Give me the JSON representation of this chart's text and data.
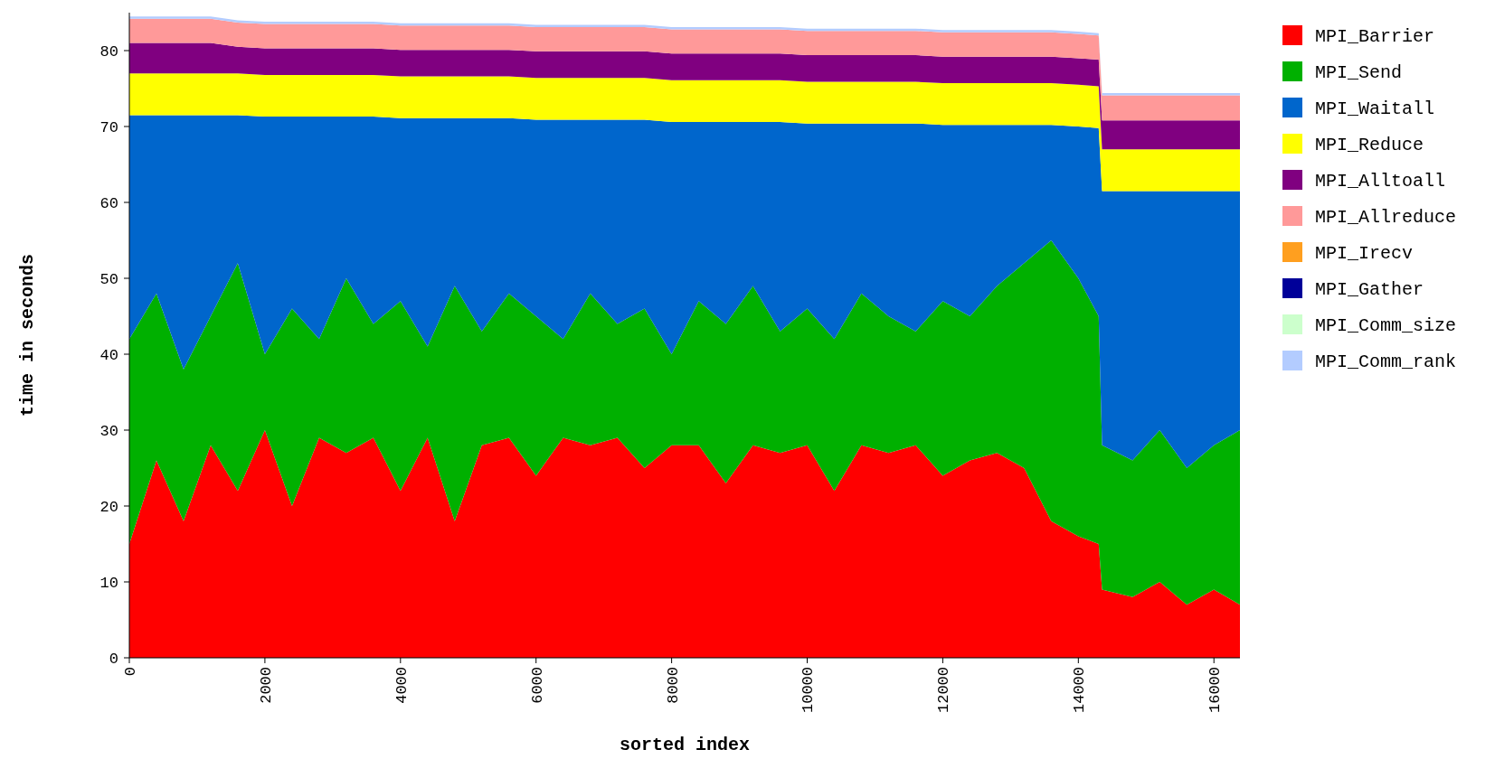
{
  "chart_data": {
    "type": "area",
    "stacked": true,
    "xlabel": "sorted index",
    "ylabel": "time in seconds",
    "xlim": [
      0,
      16384
    ],
    "ylim": [
      0,
      85
    ],
    "xticks": [
      0,
      2000,
      4000,
      6000,
      8000,
      10000,
      12000,
      14000,
      16000
    ],
    "yticks": [
      0,
      10,
      20,
      30,
      40,
      50,
      60,
      70,
      80
    ],
    "grid": false,
    "legend": "right",
    "x": [
      0,
      400,
      800,
      1200,
      1600,
      2000,
      2400,
      2800,
      3200,
      3600,
      4000,
      4400,
      4800,
      5200,
      5600,
      6000,
      6400,
      6800,
      7200,
      7600,
      8000,
      8400,
      8800,
      9200,
      9600,
      10000,
      10400,
      10800,
      11200,
      11600,
      12000,
      12400,
      12800,
      13200,
      13600,
      14000,
      14300,
      14350,
      14800,
      15200,
      15600,
      16000,
      16384
    ],
    "series": [
      {
        "name": "MPI_Barrier",
        "color": "#ff0000",
        "values": [
          15,
          26,
          18,
          28,
          22,
          30,
          20,
          29,
          27,
          29,
          22,
          29,
          18,
          28,
          29,
          24,
          29,
          28,
          29,
          25,
          28,
          28,
          23,
          28,
          27,
          28,
          22,
          28,
          27,
          28,
          24,
          26,
          27,
          25,
          18,
          16,
          15,
          9,
          8,
          10,
          7,
          9,
          7
        ]
      },
      {
        "name": "MPI_Send",
        "color": "#00b000",
        "values": [
          27,
          22,
          20,
          17,
          30,
          10,
          26,
          13,
          23,
          15,
          25,
          12,
          31,
          15,
          19,
          21,
          13,
          20,
          15,
          21,
          12,
          19,
          21,
          21,
          16,
          18,
          20,
          20,
          18,
          15,
          23,
          19,
          22,
          27,
          37,
          34,
          30,
          19,
          18,
          20,
          18,
          19,
          23
        ]
      },
      {
        "name": "MPI_Waitall",
        "color": "#0066cc",
        "values": [
          29.5,
          23.5,
          33.5,
          26.5,
          19.5,
          31.3,
          25.3,
          29.3,
          21.3,
          27.3,
          24.1,
          30.1,
          22.1,
          28.1,
          23.1,
          25.9,
          28.9,
          22.9,
          26.9,
          24.9,
          30.6,
          23.6,
          26.6,
          21.6,
          27.6,
          24.4,
          28.4,
          22.4,
          25.4,
          27.4,
          23.2,
          25.2,
          21.2,
          18.2,
          15.2,
          20,
          24.8,
          33.5,
          35.5,
          31.5,
          36.5,
          33.5,
          31.5
        ]
      },
      {
        "name": "MPI_Reduce",
        "color": "#ffff00",
        "values": [
          5.5,
          5.5,
          5.5,
          5.5,
          5.5,
          5.5,
          5.5,
          5.5,
          5.5,
          5.5,
          5.5,
          5.5,
          5.5,
          5.5,
          5.5,
          5.5,
          5.5,
          5.5,
          5.5,
          5.5,
          5.5,
          5.5,
          5.5,
          5.5,
          5.5,
          5.5,
          5.5,
          5.5,
          5.5,
          5.5,
          5.5,
          5.5,
          5.5,
          5.5,
          5.5,
          5.5,
          5.5,
          5.5,
          5.5,
          5.5,
          5.5,
          5.5,
          5.5
        ]
      },
      {
        "name": "MPI_Alltoall",
        "color": "#800080",
        "values": [
          4,
          4,
          4,
          4,
          3.5,
          3.5,
          3.5,
          3.5,
          3.5,
          3.5,
          3.5,
          3.5,
          3.5,
          3.5,
          3.5,
          3.5,
          3.5,
          3.5,
          3.5,
          3.5,
          3.5,
          3.5,
          3.5,
          3.5,
          3.5,
          3.5,
          3.5,
          3.5,
          3.5,
          3.5,
          3.5,
          3.5,
          3.5,
          3.5,
          3.5,
          3.5,
          3.5,
          3.8,
          3.8,
          3.8,
          3.8,
          3.8,
          3.8
        ]
      },
      {
        "name": "MPI_Allreduce",
        "color": "#ff9999",
        "values": [
          3.2,
          3.2,
          3.2,
          3.2,
          3.2,
          3.2,
          3.2,
          3.2,
          3.2,
          3.2,
          3.2,
          3.2,
          3.2,
          3.2,
          3.2,
          3.2,
          3.2,
          3.2,
          3.2,
          3.2,
          3.2,
          3.2,
          3.2,
          3.2,
          3.2,
          3.2,
          3.2,
          3.2,
          3.2,
          3.2,
          3.2,
          3.2,
          3.2,
          3.2,
          3.2,
          3.2,
          3.2,
          3.3,
          3.3,
          3.3,
          3.3,
          3.3,
          3.3
        ]
      },
      {
        "name": "MPI_Irecv",
        "color": "#ff9f1f",
        "values": [
          null,
          null,
          null,
          null,
          null,
          null,
          null,
          null,
          null,
          null,
          null,
          null,
          null,
          null,
          null,
          null,
          null,
          null,
          null,
          null,
          null,
          null,
          null,
          null,
          null,
          null,
          null,
          null,
          null,
          null,
          null,
          null,
          null,
          null,
          null,
          null,
          null,
          null,
          null,
          null,
          null,
          null,
          null
        ]
      },
      {
        "name": "MPI_Gather",
        "color": "#000099",
        "values": [
          null,
          null,
          null,
          null,
          null,
          null,
          null,
          null,
          null,
          null,
          null,
          null,
          null,
          null,
          null,
          null,
          null,
          null,
          null,
          null,
          null,
          null,
          null,
          null,
          null,
          null,
          null,
          null,
          null,
          null,
          null,
          null,
          null,
          null,
          null,
          null,
          null,
          null,
          null,
          null,
          null,
          null,
          null
        ]
      },
      {
        "name": "MPI_Comm_size",
        "color": "#ccffcc",
        "values": [
          null,
          null,
          null,
          null,
          null,
          null,
          null,
          null,
          null,
          null,
          null,
          null,
          null,
          null,
          null,
          null,
          null,
          null,
          null,
          null,
          null,
          null,
          null,
          null,
          null,
          null,
          null,
          null,
          null,
          null,
          null,
          null,
          null,
          null,
          null,
          null,
          null,
          null,
          null,
          null,
          null,
          null,
          null
        ]
      },
      {
        "name": "MPI_Comm_rank",
        "color": "#b3ccff",
        "values": [
          0.3,
          0.3,
          0.3,
          0.3,
          0.3,
          0.3,
          0.3,
          0.3,
          0.3,
          0.3,
          0.3,
          0.3,
          0.3,
          0.3,
          0.3,
          0.3,
          0.3,
          0.3,
          0.3,
          0.3,
          0.3,
          0.3,
          0.3,
          0.3,
          0.3,
          0.3,
          0.3,
          0.3,
          0.3,
          0.3,
          0.3,
          0.3,
          0.3,
          0.3,
          0.3,
          0.3,
          0.3,
          0.3,
          0.3,
          0.3,
          0.3,
          0.3,
          0.3
        ]
      }
    ]
  }
}
